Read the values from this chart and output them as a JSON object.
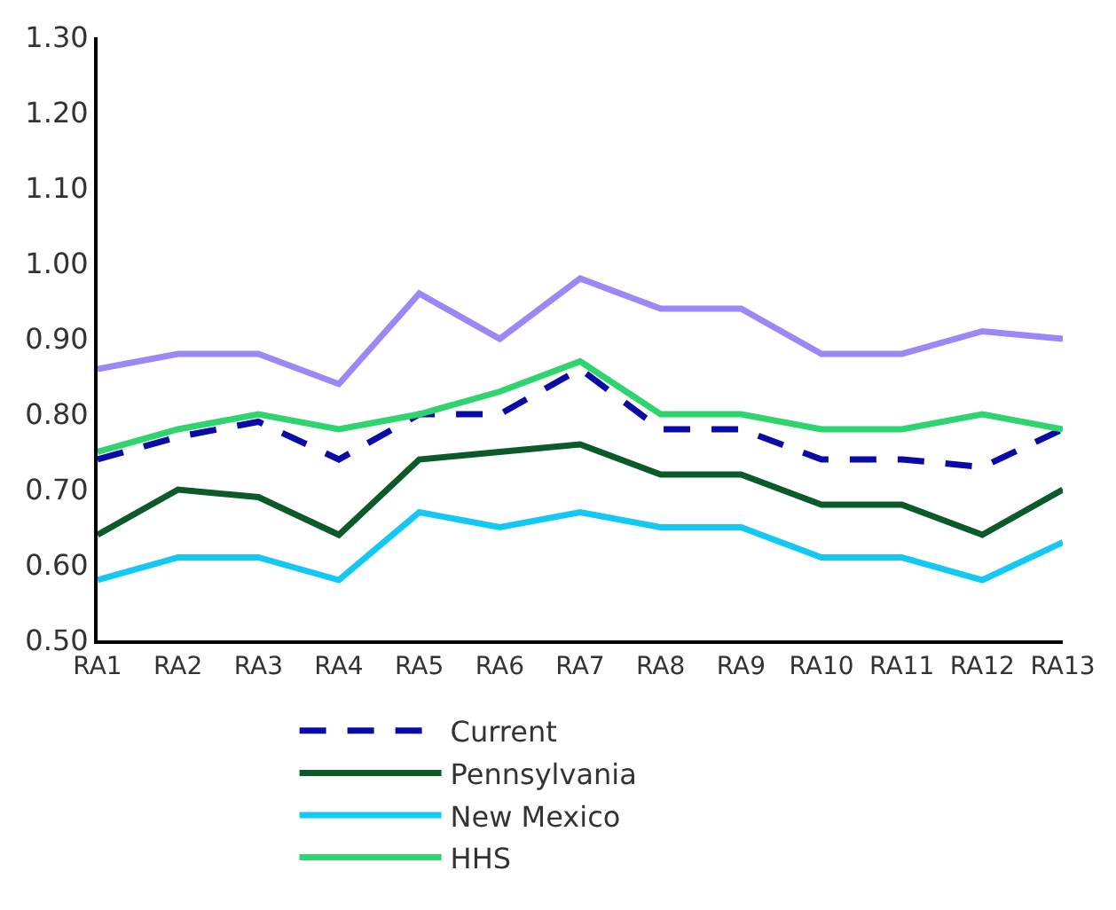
{
  "chart_data": {
    "type": "line",
    "categories": [
      "RA1",
      "RA2",
      "RA3",
      "RA4",
      "RA5",
      "RA6",
      "RA7",
      "RA8",
      "RA9",
      "RA10",
      "RA11",
      "RA12",
      "RA13"
    ],
    "series": [
      {
        "name": "Current",
        "color": "#0a0aa8",
        "line_style": "dashed",
        "values": [
          0.74,
          0.77,
          0.79,
          0.74,
          0.8,
          0.8,
          0.86,
          0.78,
          0.78,
          0.74,
          0.74,
          0.73,
          0.78
        ]
      },
      {
        "name": "Pennsylvania",
        "color": "#0b5a2a",
        "values": [
          0.64,
          0.7,
          0.69,
          0.64,
          0.74,
          0.75,
          0.76,
          0.72,
          0.72,
          0.68,
          0.68,
          0.64,
          0.7
        ]
      },
      {
        "name": "New Mexico",
        "color": "#14c8f5",
        "values": [
          0.58,
          0.61,
          0.61,
          0.58,
          0.67,
          0.65,
          0.67,
          0.65,
          0.65,
          0.61,
          0.61,
          0.58,
          0.63
        ]
      },
      {
        "name": "HHS",
        "color": "#2ed46e",
        "values": [
          0.75,
          0.78,
          0.8,
          0.78,
          0.8,
          0.83,
          0.87,
          0.8,
          0.8,
          0.78,
          0.78,
          0.8,
          0.78
        ]
      },
      {
        "color": "#9b87f5",
        "values": [
          0.86,
          0.88,
          0.88,
          0.84,
          0.96,
          0.9,
          0.98,
          0.94,
          0.94,
          0.88,
          0.88,
          0.91,
          0.9
        ]
      }
    ],
    "ylim": [
      0.5,
      1.3
    ],
    "yticks": [
      {
        "value": 0.5,
        "label": "0.50"
      },
      {
        "value": 0.6,
        "label": "0.60"
      },
      {
        "value": 0.7,
        "label": "0.70"
      },
      {
        "value": 0.8,
        "label": "0.80"
      },
      {
        "value": 0.9,
        "label": "0.90"
      },
      {
        "value": 1.0,
        "label": "1.00"
      },
      {
        "value": 1.1,
        "label": "1.10"
      },
      {
        "value": 1.2,
        "label": "1.20"
      },
      {
        "value": 1.3,
        "label": "1.30"
      }
    ],
    "legend": "bottom",
    "line_style": "solid",
    "marker": "none"
  }
}
